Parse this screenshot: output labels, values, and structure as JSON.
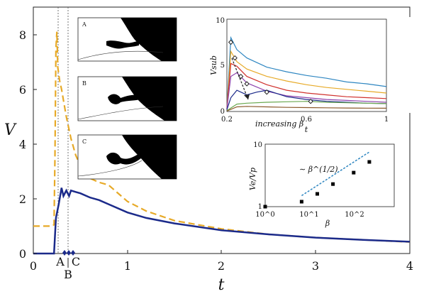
{
  "chart_data": [
    {
      "type": "line",
      "xlabel": "t",
      "ylabel": "V",
      "xlim": [
        0,
        4
      ],
      "ylim": [
        0,
        9
      ],
      "xticks": [
        "0",
        "1",
        "2",
        "3",
        "4"
      ],
      "yticks": [
        "0",
        "2",
        "4",
        "6",
        "8"
      ],
      "grid": false,
      "series": [
        {
          "color": "#E7AA28",
          "style": "dashed",
          "x": [
            0,
            0.1,
            0.2,
            0.22,
            0.23,
            0.24,
            0.25,
            0.26,
            0.28,
            0.3,
            0.35,
            0.4,
            0.45,
            0.5,
            0.55,
            0.6,
            0.7,
            0.8,
            1.0,
            1.2,
            1.5,
            2.0,
            2.5,
            3.0,
            3.5,
            4.0
          ],
          "y": [
            1.0,
            1.0,
            1.0,
            1.05,
            3.5,
            7.5,
            8.1,
            6.8,
            6.3,
            6.0,
            5.0,
            4.2,
            3.6,
            3.2,
            2.9,
            2.75,
            2.6,
            2.5,
            1.9,
            1.55,
            1.2,
            0.9,
            0.7,
            0.58,
            0.5,
            0.42
          ]
        },
        {
          "color": "#1B2A8A",
          "style": "solid",
          "x": [
            0,
            0.1,
            0.2,
            0.22,
            0.24,
            0.27,
            0.3,
            0.32,
            0.35,
            0.38,
            0.4,
            0.45,
            0.5,
            0.6,
            0.7,
            0.8,
            1.0,
            1.2,
            1.5,
            2.0,
            2.5,
            3.0,
            3.5,
            4.0
          ],
          "y": [
            0,
            0,
            0,
            0,
            1.3,
            1.8,
            2.4,
            2.1,
            2.3,
            2.1,
            2.3,
            2.25,
            2.2,
            2.05,
            1.95,
            1.8,
            1.5,
            1.3,
            1.1,
            0.85,
            0.7,
            0.58,
            0.5,
            0.43
          ]
        }
      ],
      "vlines": [
        0.235,
        0.34
      ],
      "markers": [
        {
          "label": "A",
          "x": 0.31
        },
        {
          "label": "B",
          "x": 0.36
        },
        {
          "label": "C",
          "x": 0.41
        }
      ]
    },
    {
      "type": "line",
      "xlabel": "t",
      "ylabel": "Vsub",
      "annotation": "increasing β",
      "xlim": [
        0.2,
        1
      ],
      "ylim": [
        0,
        10
      ],
      "xticks": [
        "0.2",
        "0.6",
        "1"
      ],
      "yticks": [
        "0",
        "5",
        "10"
      ],
      "series": [
        {
          "color": "#2E86C1",
          "x": [
            0.2,
            0.22,
            0.25,
            0.3,
            0.4,
            0.5,
            0.6,
            0.7,
            0.8,
            0.9,
            1.0
          ],
          "y": [
            0.3,
            8,
            6.7,
            5.8,
            4.8,
            4.3,
            3.9,
            3.6,
            3.2,
            3.0,
            2.7
          ]
        },
        {
          "color": "#E7AA28",
          "x": [
            0.2,
            0.22,
            0.25,
            0.3,
            0.4,
            0.5,
            0.6,
            0.7,
            0.8,
            0.9,
            1.0
          ],
          "y": [
            0.3,
            6.5,
            5.4,
            4.6,
            3.8,
            3.3,
            2.9,
            2.6,
            2.4,
            2.2,
            2.0
          ]
        },
        {
          "color": "#D0312D",
          "x": [
            0.2,
            0.22,
            0.25,
            0.3,
            0.4,
            0.5,
            0.6,
            0.7,
            0.8,
            0.9,
            1.0
          ],
          "y": [
            0.3,
            5.2,
            4.9,
            3.8,
            2.9,
            2.3,
            2.0,
            1.8,
            1.6,
            1.5,
            1.4
          ]
        },
        {
          "color": "#8E44AD",
          "x": [
            0.2,
            0.22,
            0.25,
            0.3,
            0.4,
            0.5,
            0.6,
            0.7,
            0.8,
            0.9,
            1.0
          ],
          "y": [
            0.3,
            3.8,
            4.2,
            3.1,
            2.2,
            1.7,
            1.5,
            1.3,
            1.2,
            1.1,
            1.0
          ]
        },
        {
          "color": "#1B2A8A",
          "x": [
            0.2,
            0.22,
            0.25,
            0.3,
            0.35,
            0.4,
            0.5,
            0.6,
            0.7,
            0.8,
            0.9,
            1.0
          ],
          "y": [
            0.2,
            1.5,
            2.3,
            1.8,
            2.1,
            2.3,
            1.6,
            1.3,
            1.1,
            1.0,
            0.9,
            0.85
          ]
        },
        {
          "color": "#6AA84F",
          "x": [
            0.2,
            0.25,
            0.3,
            0.4,
            0.5,
            0.6,
            0.7,
            0.8,
            0.9,
            1.0
          ],
          "y": [
            0.1,
            0.8,
            0.9,
            1.0,
            1.05,
            1.1,
            1.0,
            0.95,
            0.9,
            0.85
          ]
        },
        {
          "color": "#8B5A2B",
          "x": [
            0.2,
            0.25,
            0.3,
            0.4,
            0.5,
            0.6,
            0.7,
            0.8,
            0.9,
            1.0
          ],
          "y": [
            0.05,
            0.5,
            0.55,
            0.5,
            0.45,
            0.42,
            0.4,
            0.38,
            0.36,
            0.35
          ]
        }
      ],
      "diamonds": [
        {
          "x": 0.22,
          "y": 7.5
        },
        {
          "x": 0.24,
          "y": 5.8
        },
        {
          "x": 0.27,
          "y": 3.8
        },
        {
          "x": 0.3,
          "y": 3.0
        },
        {
          "x": 0.4,
          "y": 2.1
        },
        {
          "x": 0.62,
          "y": 1.1
        }
      ]
    },
    {
      "type": "scatter",
      "xlabel": "β",
      "ylabel": "Ve/Vp",
      "annotation": "∼ β^(1/2)",
      "xscale": "log",
      "yscale": "log",
      "xlim": [
        1,
        300
      ],
      "ylim": [
        1,
        10
      ],
      "xticks": [
        "10^0",
        "10^1",
        "10^2"
      ],
      "yticks": [
        "1",
        "10"
      ],
      "points": {
        "x": [
          1,
          5,
          10,
          20,
          50,
          100
        ],
        "y": [
          1.0,
          1.2,
          1.6,
          2.3,
          3.5,
          5.2
        ]
      },
      "fit_line": {
        "x": [
          5,
          100
        ],
        "y": [
          1.5,
          7.5
        ]
      }
    }
  ]
}
